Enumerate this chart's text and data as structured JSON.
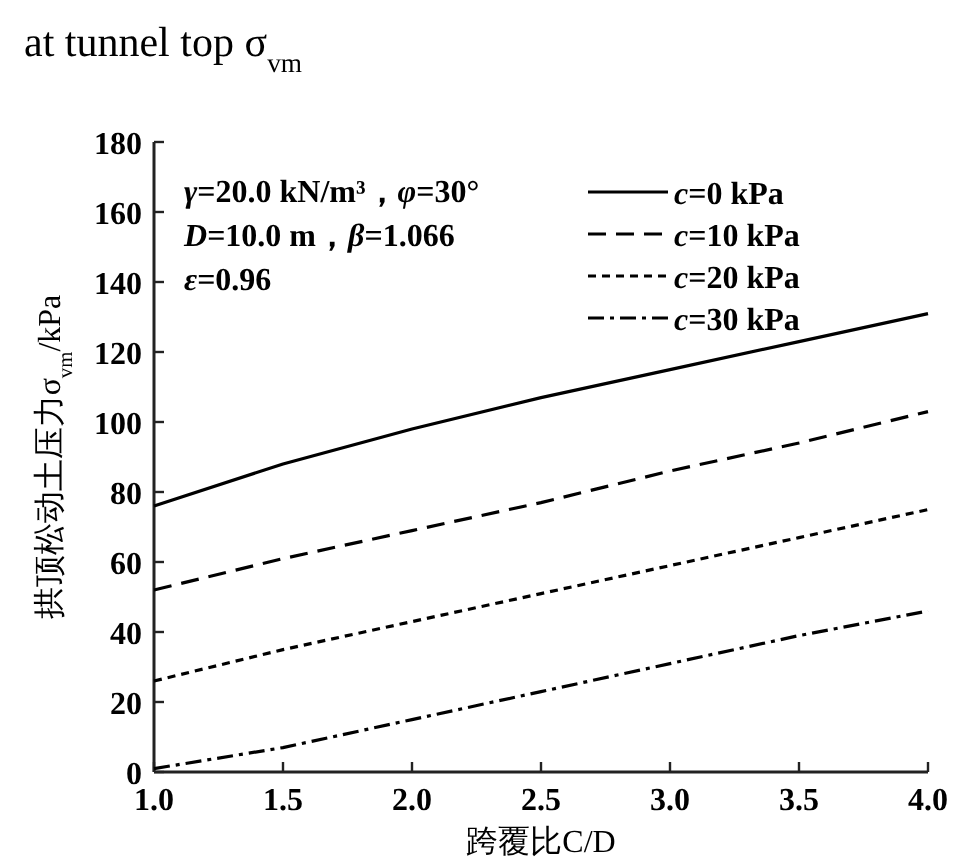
{
  "chart_data": {
    "type": "line",
    "title": "at tunnel top σ$_{vm}$",
    "xlabel": "跨覆比C/D",
    "ylabel": "拱顶松动土压力σ$_{vm}$/kPa",
    "x": [
      1.0,
      1.5,
      2.0,
      2.5,
      3.0,
      3.5,
      4.0
    ],
    "series": [
      {
        "name": "*c*=0 kPa",
        "color": "#000000",
        "line_style": "solid",
        "values": [
          76,
          88,
          98,
          107,
          115,
          123,
          131
        ]
      },
      {
        "name": "*c*=10 kPa",
        "color": "#000000",
        "line_style": "dashed",
        "values": [
          52,
          61,
          69,
          77,
          86,
          94,
          103
        ]
      },
      {
        "name": "*c*=20 kPa",
        "color": "#000000",
        "line_style": "dotted",
        "values": [
          26,
          35,
          43,
          51,
          59,
          67,
          75
        ]
      },
      {
        "name": "*c*=30 kPa",
        "color": "#000000",
        "line_style": "dashdot",
        "values": [
          1,
          7,
          15,
          23,
          31,
          39,
          46
        ]
      }
    ],
    "annotations": [
      "*γ*=20.0 kN/m³，*φ*=30°",
      "*D*=10.0 m，*β*=1.066",
      "*ε*=0.96"
    ],
    "xlim": [
      1.0,
      4.0
    ],
    "xticks": [
      {
        "value": 1,
        "label": "1.0"
      },
      1.5,
      {
        "value": 2,
        "label": "2.0"
      },
      2.5,
      {
        "value": 3,
        "label": "3.0"
      },
      3.5,
      {
        "value": 4,
        "label": "4.0"
      }
    ],
    "ylim": [
      0,
      180
    ],
    "yticks": [
      0,
      20,
      40,
      60,
      80,
      100,
      120,
      140,
      160,
      180
    ],
    "legend": "top right",
    "grid": false,
    "marker": "none"
  }
}
